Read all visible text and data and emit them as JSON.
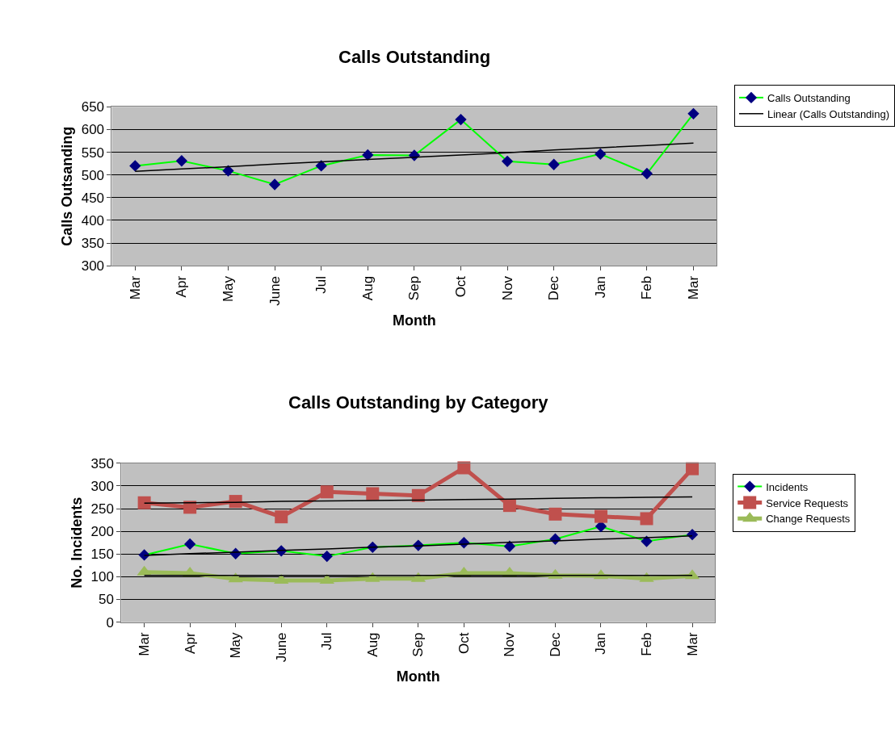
{
  "chart_data": [
    {
      "type": "line",
      "title": "Calls Outstanding",
      "xlabel": "Month",
      "ylabel": "Calls Outsanding",
      "categories": [
        "Mar",
        "Apr",
        "May",
        "June",
        "Jul",
        "Aug",
        "Sep",
        "Oct",
        "Nov",
        "Dec",
        "Jan",
        "Feb",
        "Mar"
      ],
      "ylim": [
        300,
        650
      ],
      "yticks": [
        300,
        350,
        400,
        450,
        500,
        550,
        600,
        650
      ],
      "grid": "y",
      "legend": "top right",
      "line_style": "solid",
      "series": [
        {
          "name": "Calls Outstanding",
          "color": "#00ff00",
          "colors": [
            "#000080",
            "#000080",
            "#000080",
            "#000080",
            "#000080",
            "#000080",
            "#000080",
            "#000080",
            "#000080",
            "#000080",
            "#000080",
            "#000080",
            "#000080"
          ],
          "marker": "diamond",
          "values": [
            520,
            531,
            509,
            479,
            520,
            544,
            543,
            622,
            530,
            523,
            546,
            503,
            635
          ]
        },
        {
          "name": "Linear (Calls Outstanding)",
          "color": "#000000",
          "marker": "none",
          "values": [
            508,
            513,
            518,
            524,
            529,
            534,
            539,
            544,
            549,
            555,
            560,
            565,
            570
          ]
        }
      ]
    },
    {
      "type": "line",
      "title": "Calls Outstanding by Category",
      "xlabel": "Month",
      "ylabel": "No. Incidents",
      "categories": [
        "Mar",
        "Apr",
        "May",
        "June",
        "Jul",
        "Aug",
        "Sep",
        "Oct",
        "Nov",
        "Dec",
        "Jan",
        "Feb",
        "Mar"
      ],
      "ylim": [
        0,
        350
      ],
      "yticks": [
        0,
        50,
        100,
        150,
        200,
        250,
        300,
        350
      ],
      "grid": "y",
      "legend": "right",
      "line_style": "solid",
      "series": [
        {
          "name": "Incidents",
          "color": "#00ff00",
          "colors": [
            "#000080",
            "#000080",
            "#000080",
            "#000080",
            "#000080",
            "#000080",
            "#000080",
            "#000080",
            "#000080",
            "#000080",
            "#000080",
            "#000080",
            "#000080"
          ],
          "marker": "diamond",
          "values": [
            148,
            172,
            151,
            157,
            145,
            165,
            169,
            175,
            167,
            183,
            211,
            178,
            193
          ]
        },
        {
          "name": "Service Requests",
          "color": "#c0504d",
          "marker": "square",
          "values": [
            263,
            253,
            266,
            232,
            287,
            283,
            279,
            340,
            257,
            238,
            233,
            228,
            338
          ]
        },
        {
          "name": "Change Requests",
          "color": "#9bbb59",
          "marker": "triangle",
          "values": [
            110,
            108,
            95,
            92,
            92,
            96,
            96,
            108,
            108,
            103,
            102,
            96,
            102
          ]
        },
        {
          "color": "#000000",
          "marker": "none",
          "values": [
            147,
            151,
            154,
            158,
            161,
            165,
            168,
            172,
            176,
            179,
            183,
            186,
            190
          ]
        },
        {
          "color": "#000000",
          "marker": "none",
          "values": [
            262,
            263,
            264,
            266,
            267,
            268,
            269,
            270,
            271,
            273,
            274,
            275,
            276
          ]
        },
        {
          "color": "#000000",
          "marker": "none",
          "values": [
            103,
            103,
            103,
            103,
            103,
            103,
            103,
            103,
            103,
            103,
            103,
            103,
            103
          ]
        }
      ]
    }
  ]
}
